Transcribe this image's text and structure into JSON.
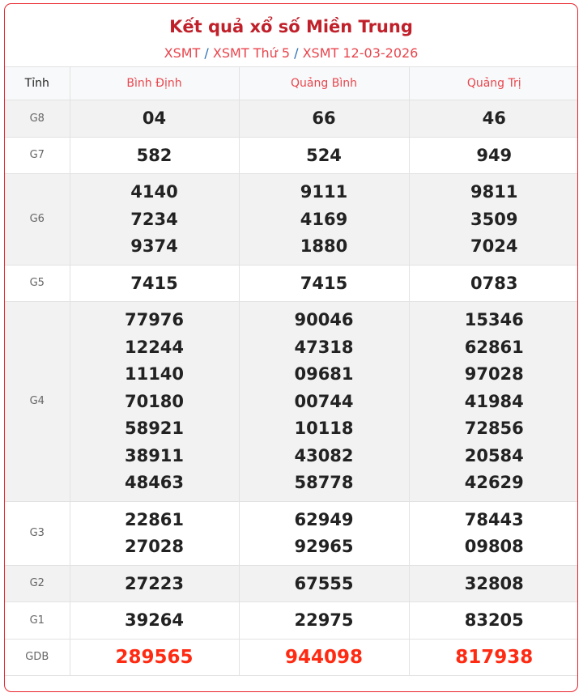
{
  "header": {
    "title": "Kết quả xổ số Miền Trung",
    "breadcrumb": [
      "XSMT",
      "XSMT Thứ 5",
      "XSMT 12-03-2026"
    ],
    "separator": "/"
  },
  "table": {
    "columns": [
      "Tỉnh",
      "Bình Định",
      "Quảng Bình",
      "Quảng Trị"
    ],
    "rows": [
      {
        "label": "G8",
        "values": [
          [
            "04"
          ],
          [
            "66"
          ],
          [
            "46"
          ]
        ]
      },
      {
        "label": "G7",
        "values": [
          [
            "582"
          ],
          [
            "524"
          ],
          [
            "949"
          ]
        ]
      },
      {
        "label": "G6",
        "values": [
          [
            "4140",
            "7234",
            "9374"
          ],
          [
            "9111",
            "4169",
            "1880"
          ],
          [
            "9811",
            "3509",
            "7024"
          ]
        ]
      },
      {
        "label": "G5",
        "values": [
          [
            "7415"
          ],
          [
            "7415"
          ],
          [
            "0783"
          ]
        ]
      },
      {
        "label": "G4",
        "values": [
          [
            "77976",
            "12244",
            "11140",
            "70180",
            "58921",
            "38911",
            "48463"
          ],
          [
            "90046",
            "47318",
            "09681",
            "00744",
            "10118",
            "43082",
            "58778"
          ],
          [
            "15346",
            "62861",
            "97028",
            "41984",
            "72856",
            "20584",
            "42629"
          ]
        ]
      },
      {
        "label": "G3",
        "values": [
          [
            "22861",
            "27028"
          ],
          [
            "62949",
            "92965"
          ],
          [
            "78443",
            "09808"
          ]
        ]
      },
      {
        "label": "G2",
        "values": [
          [
            "27223"
          ],
          [
            "67555"
          ],
          [
            "32808"
          ]
        ]
      },
      {
        "label": "G1",
        "values": [
          [
            "39264"
          ],
          [
            "22975"
          ],
          [
            "83205"
          ]
        ]
      },
      {
        "label": "GDB",
        "values": [
          [
            "289565"
          ],
          [
            "944098"
          ],
          [
            "817938"
          ]
        ]
      }
    ]
  },
  "colors": {
    "accent": "#e8242c",
    "special_prize": "#ff2a12",
    "title": "#c0202a"
  }
}
